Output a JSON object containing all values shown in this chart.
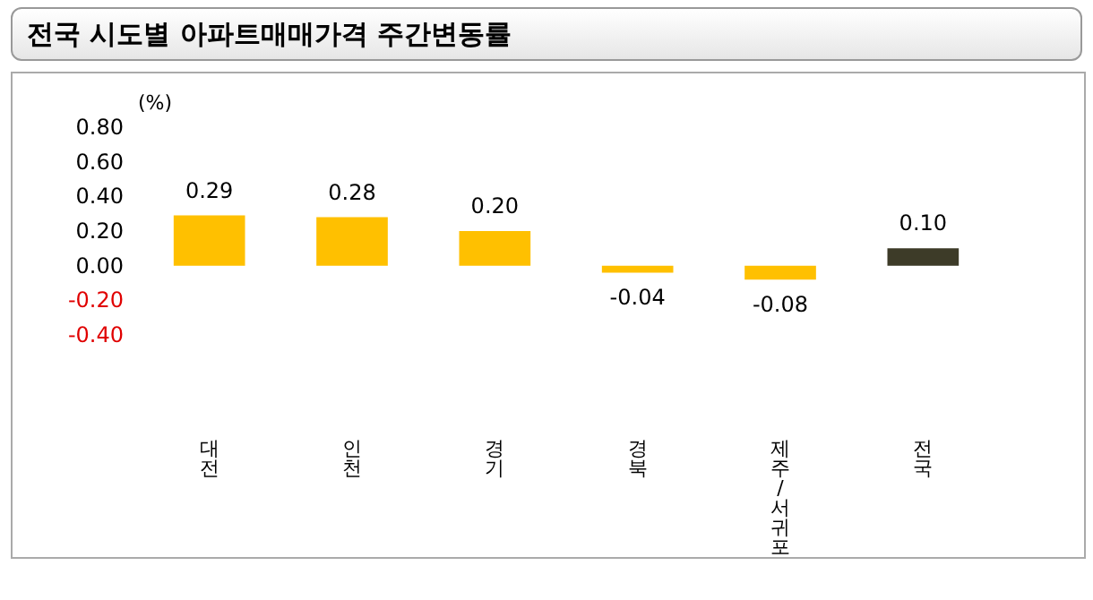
{
  "chart_data": {
    "type": "bar",
    "title": "전국 시도별 아파트매매가격 주간변동률",
    "ylabel": "(%)",
    "categories": [
      "대전",
      "인천",
      "경기",
      "경북",
      "제주/서귀포",
      "전국"
    ],
    "values": [
      0.29,
      0.28,
      0.2,
      -0.04,
      -0.08,
      0.1
    ],
    "colors": [
      "#ffc000",
      "#ffc000",
      "#ffc000",
      "#ffc000",
      "#ffc000",
      "#3d3b28"
    ],
    "ylim": [
      -0.4,
      0.8
    ],
    "yticks": [
      {
        "value": -0.4,
        "label": "-0.40"
      },
      {
        "value": -0.2,
        "label": "-0.20"
      },
      {
        "value": 0,
        "label": "0.00"
      },
      {
        "value": 0.2,
        "label": "0.20"
      },
      {
        "value": 0.4,
        "label": "0.40"
      },
      {
        "value": 0.6,
        "label": "0.60"
      },
      {
        "value": 0.8,
        "label": "0.80"
      }
    ],
    "value_labels": [
      "0.29",
      "0.28",
      "0.20",
      "-0.04",
      "-0.08",
      "0.10"
    ],
    "grid": false
  }
}
